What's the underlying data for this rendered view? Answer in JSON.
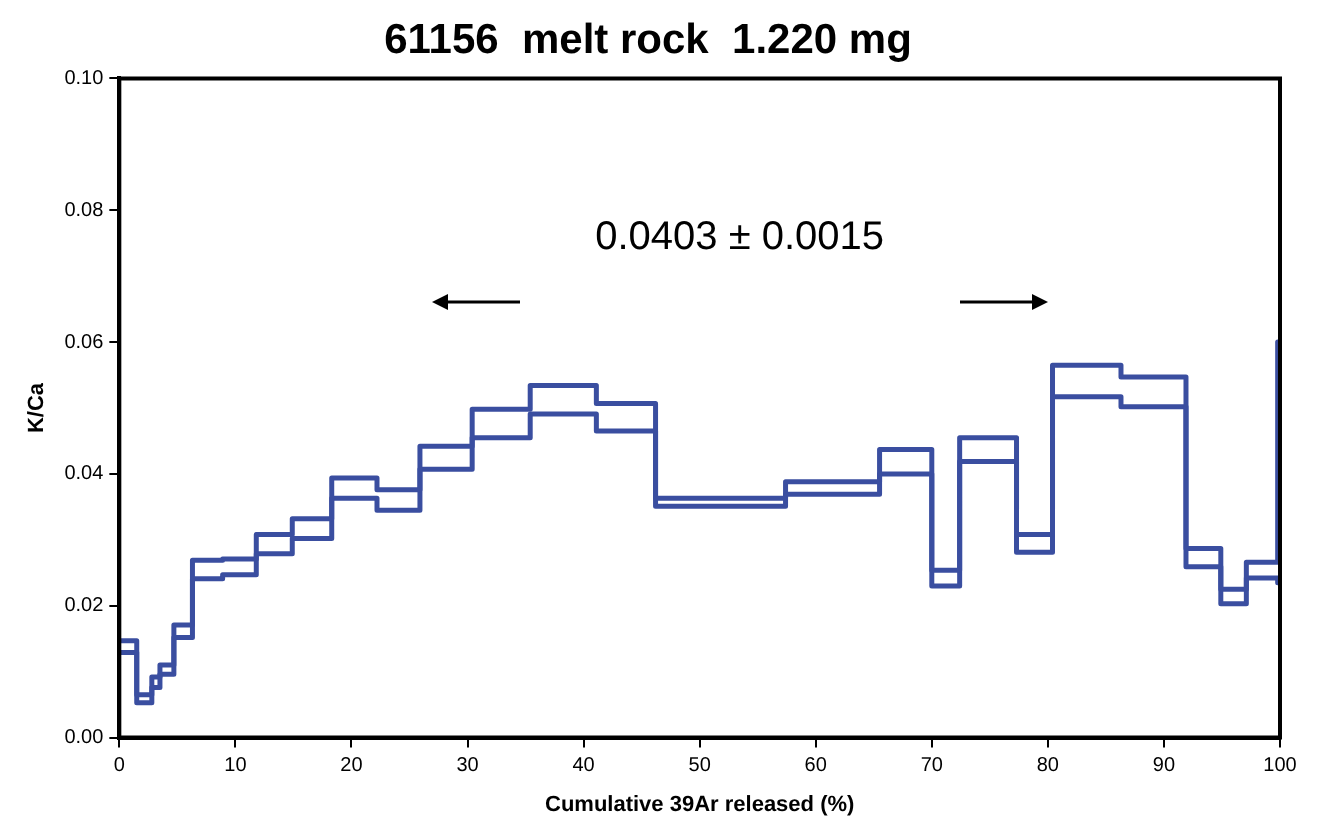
{
  "chart_data": {
    "type": "step",
    "title": "61156  melt rock  1.220 mg",
    "xlabel": "Cumulative 39Ar released (%)",
    "ylabel": "K/Ca",
    "annotations": [
      "0.0403 ± 0.0015"
    ],
    "series": [
      {
        "color": "#3a4ea0",
        "x": [
          0,
          1.5,
          2.8,
          3.5,
          4.7,
          6.3,
          8.9,
          11.8,
          14.9,
          18.3,
          22.2,
          25.9,
          30.4,
          35.4,
          41.1,
          46.2,
          57.4,
          65.5,
          70.0,
          72.4,
          77.3,
          80.4,
          86.3,
          91.9,
          94.9,
          97.1,
          99.8,
          100
        ],
        "values": [
          0.0147,
          0.0065,
          0.0092,
          0.011,
          0.0171,
          0.0269,
          0.0271,
          0.0308,
          0.0332,
          0.0394,
          0.0376,
          0.0442,
          0.0498,
          0.0534,
          0.0507,
          0.0363,
          0.0388,
          0.0437,
          0.0254,
          0.0455,
          0.0308,
          0.0565,
          0.0547,
          0.0287,
          0.0225,
          0.0266,
          0.06,
          0.06
        ]
      },
      {
        "color": "#3a4ea0",
        "x": [
          0,
          1.5,
          2.8,
          3.5,
          4.7,
          6.3,
          8.9,
          11.8,
          14.9,
          18.3,
          22.2,
          25.9,
          30.4,
          35.4,
          41.1,
          46.2,
          57.4,
          65.5,
          70.0,
          72.4,
          77.3,
          80.4,
          86.3,
          91.9,
          94.9,
          97.1,
          99.8,
          100
        ],
        "values": [
          0.0129,
          0.0053,
          0.0076,
          0.0096,
          0.0152,
          0.0241,
          0.0247,
          0.0279,
          0.0302,
          0.0363,
          0.0345,
          0.0407,
          0.0455,
          0.0491,
          0.0465,
          0.0351,
          0.0369,
          0.04,
          0.023,
          0.0419,
          0.0281,
          0.0517,
          0.0502,
          0.0259,
          0.0203,
          0.0242,
          0.0235,
          0.0235
        ]
      }
    ],
    "xlim": [
      0,
      100
    ],
    "xticks": [
      0,
      10,
      20,
      30,
      40,
      50,
      60,
      70,
      80,
      90,
      100
    ],
    "ylim": [
      0,
      0.1
    ],
    "yticks": [
      {
        "value": 0,
        "label": "0.00"
      },
      {
        "value": 0.02,
        "label": "0.02"
      },
      {
        "value": 0.04,
        "label": "0.04"
      },
      {
        "value": 0.06,
        "label": "0.06"
      },
      {
        "value": 0.08,
        "label": "0.08"
      },
      {
        "value": 0.1,
        "label": "0.10"
      }
    ],
    "grid": false,
    "legend": false,
    "marker": "none",
    "line_style": "solid"
  }
}
